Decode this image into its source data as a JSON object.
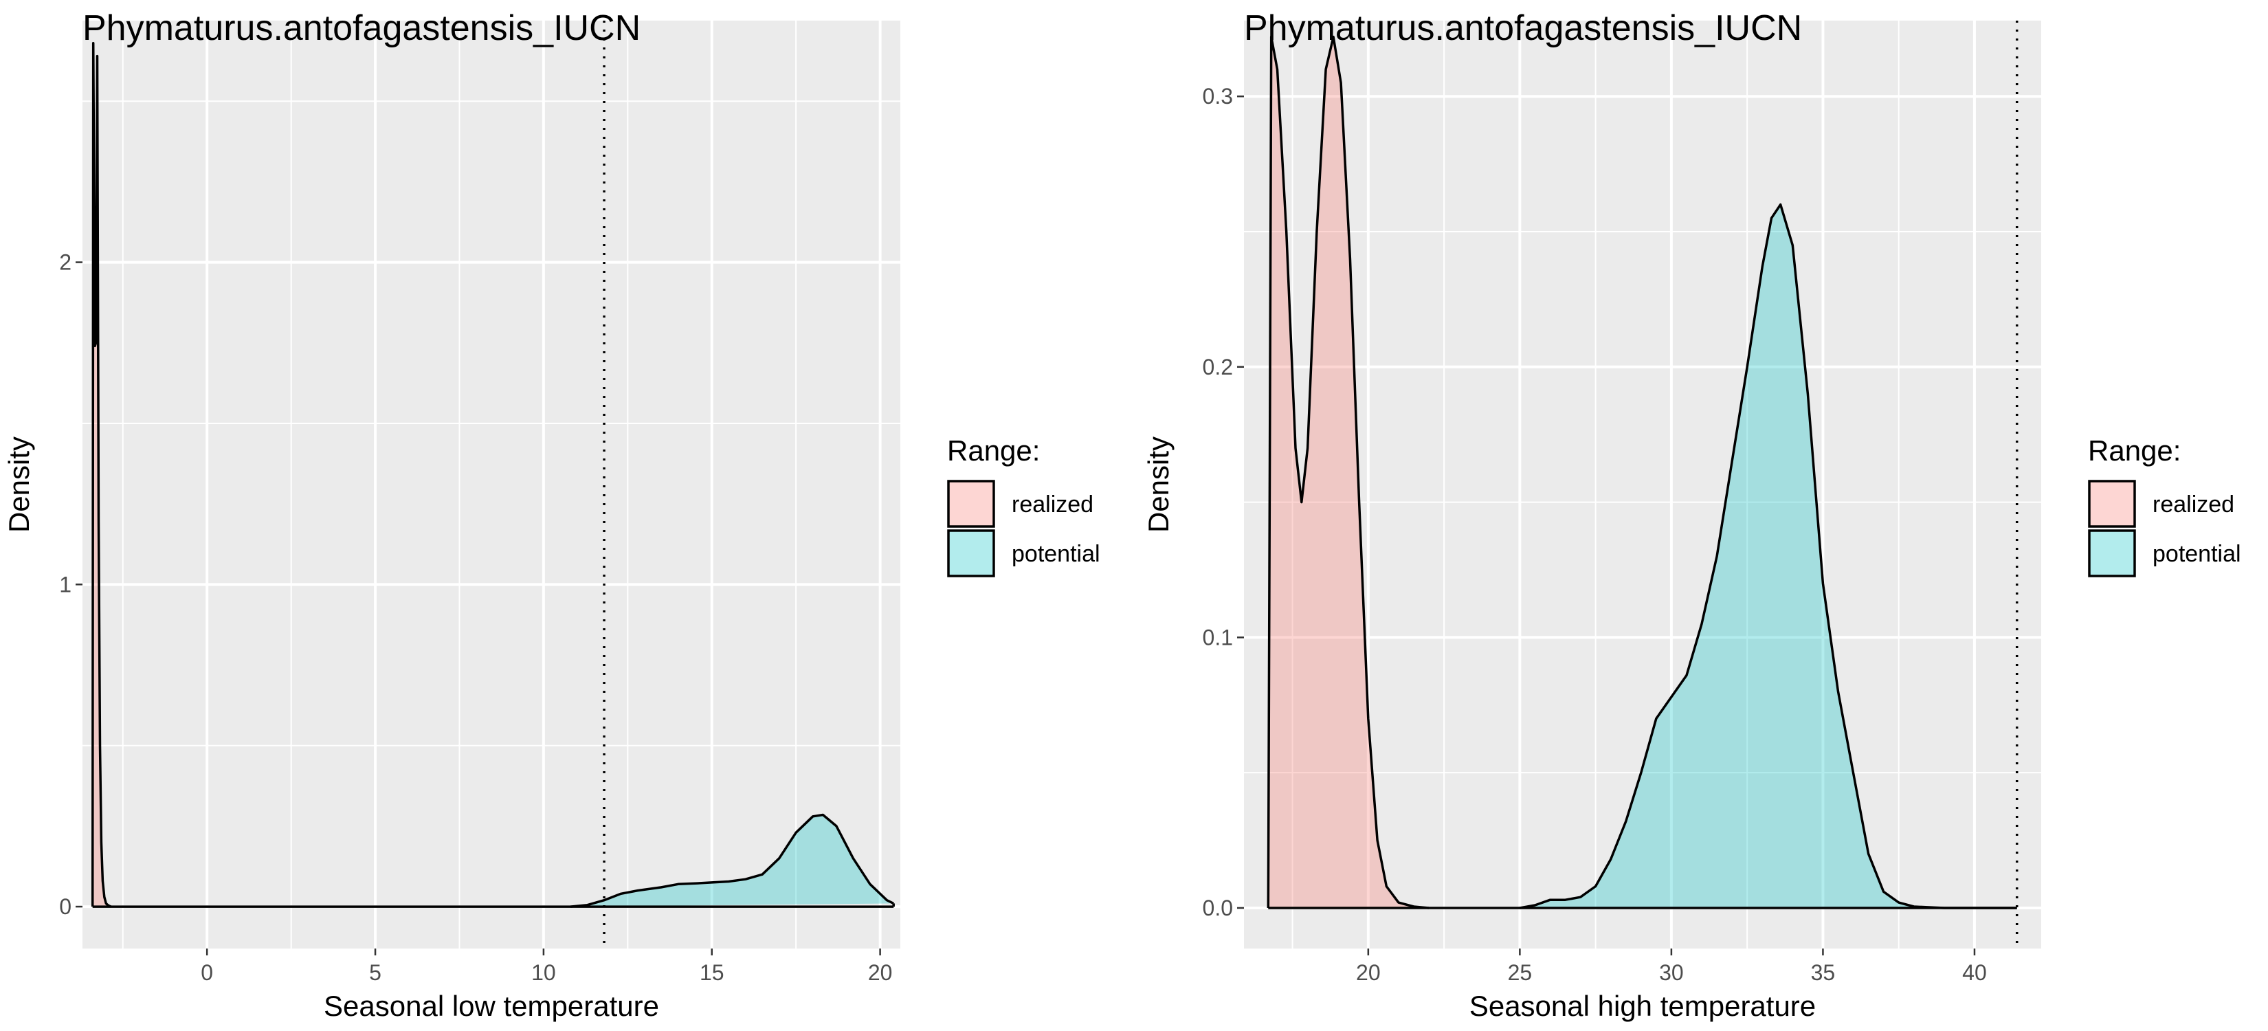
{
  "chart_data": [
    {
      "type": "area",
      "title": "Phymaturus.antofagastensis_IUCN",
      "xlabel": "Seasonal low temperature",
      "ylabel": "Density",
      "xlim": [
        -3.7,
        20.6
      ],
      "ylim": [
        -0.13,
        2.75
      ],
      "x_ticks": [
        0,
        5,
        10,
        15,
        20
      ],
      "y_ticks": [
        0,
        1,
        2
      ],
      "grid": true,
      "legend": {
        "title": "Range:",
        "position": "right",
        "entries": [
          "realized",
          "potential"
        ]
      },
      "reference_line": {
        "x": 11.8,
        "style": "dotted"
      },
      "series": [
        {
          "name": "realized",
          "color": "#F8766D",
          "x": [
            -3.4,
            -3.38,
            -3.33,
            -3.3,
            -3.26,
            -3.22,
            -3.18,
            -3.14,
            -3.1,
            -3.05,
            -3.0,
            -2.95,
            -2.9,
            -2.85
          ],
          "y": [
            0,
            2.68,
            1.74,
            1.75,
            2.64,
            1.2,
            0.5,
            0.2,
            0.08,
            0.03,
            0.01,
            0.005,
            0.002,
            0
          ]
        },
        {
          "name": "potential",
          "color": "#00BFC4",
          "x": [
            10.8,
            11.3,
            11.8,
            12.3,
            12.8,
            13.5,
            14.0,
            14.5,
            15.0,
            15.5,
            16.0,
            16.5,
            17.0,
            17.5,
            18.0,
            18.3,
            18.7,
            19.2,
            19.7,
            20.2,
            20.4
          ],
          "y": [
            0,
            0.005,
            0.02,
            0.04,
            0.05,
            0.06,
            0.07,
            0.072,
            0.075,
            0.078,
            0.085,
            0.1,
            0.15,
            0.23,
            0.28,
            0.285,
            0.25,
            0.15,
            0.07,
            0.02,
            0.01
          ]
        }
      ]
    },
    {
      "type": "area",
      "title": "Phymaturus.antofagastensis_IUCN",
      "xlabel": "Seasonal high temperature",
      "ylabel": "Density",
      "xlim": [
        15.9,
        42.2
      ],
      "ylim": [
        -0.015,
        0.328
      ],
      "x_ticks": [
        20,
        25,
        30,
        35,
        40
      ],
      "y_ticks": [
        0.0,
        0.1,
        0.2,
        0.3
      ],
      "y_tick_labels": [
        "0.0",
        "0.1",
        "0.2",
        "0.3"
      ],
      "grid": true,
      "legend": {
        "title": "Range:",
        "position": "right",
        "entries": [
          "realized",
          "potential"
        ]
      },
      "reference_line": {
        "x": 41.4,
        "style": "dotted"
      },
      "series": [
        {
          "name": "realized",
          "color": "#F8766D",
          "x": [
            16.7,
            16.8,
            17.0,
            17.3,
            17.6,
            17.8,
            18.0,
            18.3,
            18.6,
            18.85,
            19.1,
            19.4,
            19.7,
            20.0,
            20.3,
            20.6,
            21.0,
            21.5,
            22.0
          ],
          "y": [
            0,
            0.322,
            0.31,
            0.25,
            0.17,
            0.15,
            0.17,
            0.25,
            0.31,
            0.322,
            0.305,
            0.24,
            0.15,
            0.07,
            0.025,
            0.008,
            0.002,
            0.0005,
            0
          ]
        },
        {
          "name": "potential",
          "color": "#00BFC4",
          "x": [
            25.0,
            25.5,
            26.0,
            26.5,
            27.0,
            27.5,
            28.0,
            28.5,
            29.0,
            29.5,
            30.0,
            30.5,
            31.0,
            31.5,
            32.0,
            32.5,
            33.0,
            33.3,
            33.6,
            34.0,
            34.5,
            35.0,
            35.5,
            36.0,
            36.5,
            37.0,
            37.5,
            38.0,
            39.0,
            41.4
          ],
          "y": [
            0,
            0.001,
            0.003,
            0.003,
            0.004,
            0.008,
            0.018,
            0.032,
            0.05,
            0.07,
            0.078,
            0.086,
            0.105,
            0.13,
            0.165,
            0.2,
            0.237,
            0.255,
            0.26,
            0.245,
            0.19,
            0.12,
            0.08,
            0.05,
            0.02,
            0.006,
            0.002,
            0.0005,
            0,
            0
          ]
        }
      ]
    }
  ]
}
